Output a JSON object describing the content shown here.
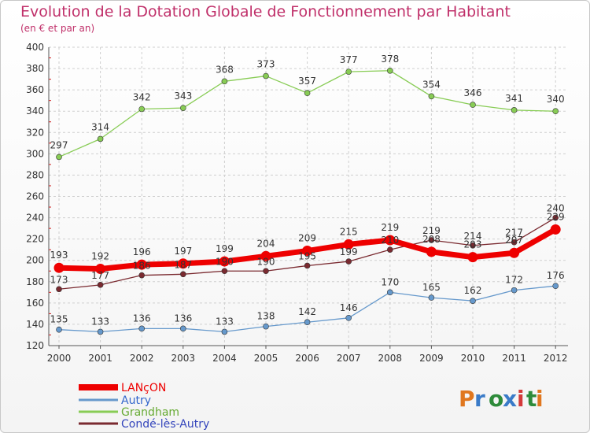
{
  "title": "Evolution de la Dotation Globale de Fonctionnement par Habitant",
  "subtitle": "(en € et par an)",
  "logo_text": "Proxiti",
  "colors": {
    "title": "#c0306a",
    "grid": "#cfcfcf",
    "axis_red_ticks": "#d02020"
  },
  "chart_data": {
    "type": "line",
    "x": [
      "2000",
      "2001",
      "2002",
      "2003",
      "2004",
      "2005",
      "2006",
      "2007",
      "2008",
      "2009",
      "2010",
      "2011",
      "2012"
    ],
    "ylim": [
      120,
      400
    ],
    "yticks": [
      120,
      140,
      160,
      180,
      200,
      220,
      240,
      260,
      280,
      300,
      320,
      340,
      360,
      380,
      400
    ],
    "grid": true,
    "legend_position": "bottom-left",
    "series": [
      {
        "name": "LANçON",
        "color": "#ee0000",
        "values": [
          193,
          192,
          196,
          197,
          199,
          204,
          209,
          215,
          219,
          208,
          203,
          207,
          229
        ],
        "labels": [
          "193",
          "192",
          "196",
          "197",
          "199",
          "204",
          "209",
          "215",
          "219",
          "208",
          "203",
          "207",
          "229"
        ],
        "width": 7,
        "legend_color": "#ee0000"
      },
      {
        "name": "Autry",
        "color": "#6699cc",
        "values": [
          135,
          133,
          136,
          136,
          133,
          138,
          142,
          146,
          170,
          165,
          162,
          172,
          176
        ],
        "labels": [
          "135",
          "133",
          "136",
          "136",
          "133",
          "138",
          "142",
          "146",
          "170",
          "165",
          "162",
          "172",
          "176"
        ],
        "width": 1.3,
        "legend_color": "#3366cc"
      },
      {
        "name": "Grandham",
        "color": "#88cc55",
        "values": [
          297,
          314,
          342,
          343,
          368,
          373,
          357,
          377,
          378,
          354,
          346,
          341,
          340
        ],
        "labels": [
          "297",
          "314",
          "342",
          "343",
          "368",
          "373",
          "357",
          "377",
          "378",
          "354",
          "346",
          "341",
          "340"
        ],
        "width": 1.3,
        "legend_color": "#66aa33"
      },
      {
        "name": "Condé-lès-Autry",
        "color": "#7a2a30",
        "values": [
          173,
          177,
          186,
          187,
          190,
          190,
          195,
          199,
          210,
          219,
          214,
          217,
          240
        ],
        "labels": [
          "173",
          "177",
          "186",
          "187",
          "190",
          "190",
          "195",
          "199",
          "210",
          "219",
          "214",
          "217",
          "240"
        ],
        "width": 1.3,
        "legend_color": "#3344bb"
      }
    ]
  }
}
